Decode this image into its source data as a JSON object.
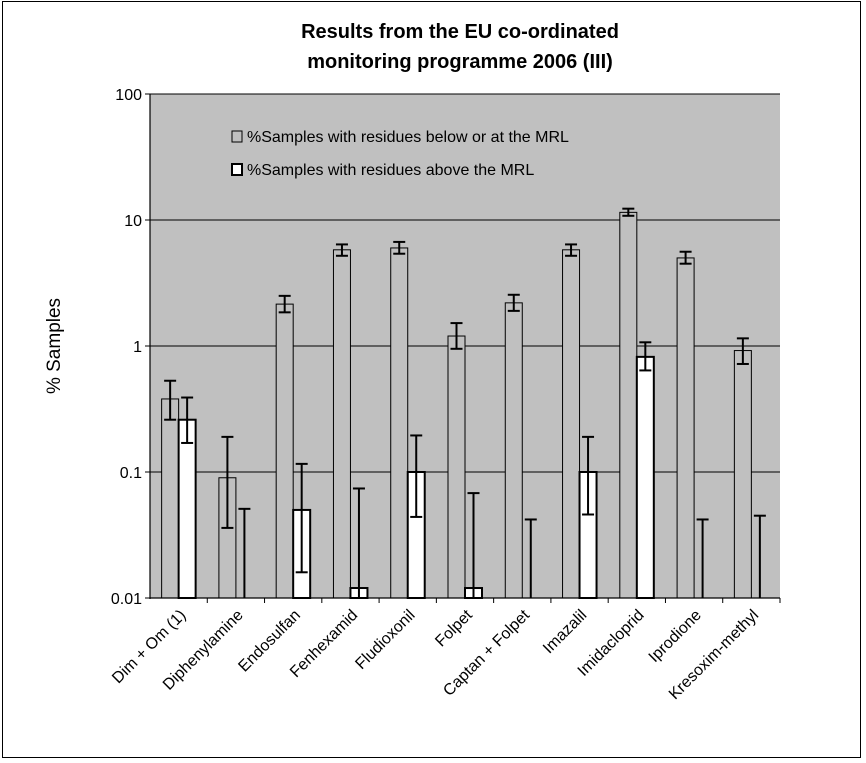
{
  "chart_data": {
    "type": "bar",
    "title_lines": [
      "Results from the EU co-ordinated",
      "monitoring programme 2006 (III)"
    ],
    "ylabel": "% Samples",
    "yscale": "log",
    "ylim": [
      0.01,
      100
    ],
    "yticks": [
      "0.01",
      "0.1",
      "1",
      "10",
      "100"
    ],
    "grid": true,
    "legend_placement": "top-center",
    "categories": [
      "Dim + Om (1)",
      "Diphenylamine",
      "Endosulfan",
      "Fenhexamid",
      "Fludioxonil",
      "Folpet",
      "Captan + Folpet",
      "Imazalil",
      "Imidacloprid",
      "Iprodione",
      "Kresoxim-methyl"
    ],
    "series": [
      {
        "name": "%Samples with residues below or at the MRL",
        "color": "#c0c0c0",
        "values": [
          0.38,
          0.09,
          2.15,
          5.8,
          6.0,
          1.2,
          2.2,
          5.8,
          11.5,
          5.0,
          0.92
        ],
        "err_low": [
          0.26,
          0.036,
          1.85,
          5.2,
          5.4,
          0.95,
          1.9,
          5.2,
          10.8,
          4.5,
          0.72
        ],
        "err_high": [
          0.53,
          0.19,
          2.5,
          6.4,
          6.7,
          1.52,
          2.55,
          6.4,
          12.3,
          5.6,
          1.15
        ]
      },
      {
        "name": "%Samples with residues above the MRL",
        "color": "#ffffff",
        "values": [
          0.26,
          null,
          0.05,
          0.012,
          0.1,
          0.012,
          null,
          0.1,
          0.82,
          null,
          null
        ],
        "err_low": [
          0.17,
          null,
          0.016,
          null,
          0.044,
          null,
          null,
          0.046,
          0.64,
          null,
          null
        ],
        "err_high": [
          0.39,
          0.051,
          0.116,
          0.074,
          0.195,
          0.068,
          0.042,
          0.19,
          1.07,
          0.042,
          0.045
        ]
      }
    ]
  }
}
